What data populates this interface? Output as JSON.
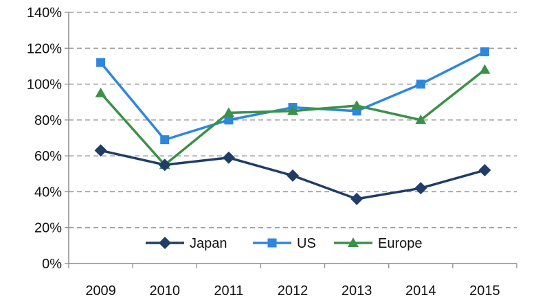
{
  "chart_data": {
    "type": "line",
    "title": "",
    "xlabel": "",
    "ylabel": "",
    "categories": [
      "2009",
      "2010",
      "2011",
      "2012",
      "2013",
      "2014",
      "2015"
    ],
    "ylim": [
      0,
      140
    ],
    "yticks": [
      0,
      20,
      40,
      60,
      80,
      100,
      120,
      140
    ],
    "ytick_labels": [
      "0%",
      "20%",
      "40%",
      "60%",
      "80%",
      "100%",
      "120%",
      "140%"
    ],
    "grid": "horizontal dashed",
    "legend_position": "bottom-center inside plot",
    "series": [
      {
        "name": "Japan",
        "color": "#1f3d66",
        "marker": "diamond",
        "values": [
          63,
          55,
          59,
          49,
          36,
          42,
          52
        ]
      },
      {
        "name": "US",
        "color": "#2e86de",
        "marker": "square",
        "values": [
          112,
          69,
          80,
          87,
          85,
          100,
          118
        ]
      },
      {
        "name": "Europe",
        "color": "#3a9147",
        "marker": "triangle",
        "values": [
          95,
          55,
          84,
          85,
          88,
          80,
          108
        ]
      }
    ]
  }
}
